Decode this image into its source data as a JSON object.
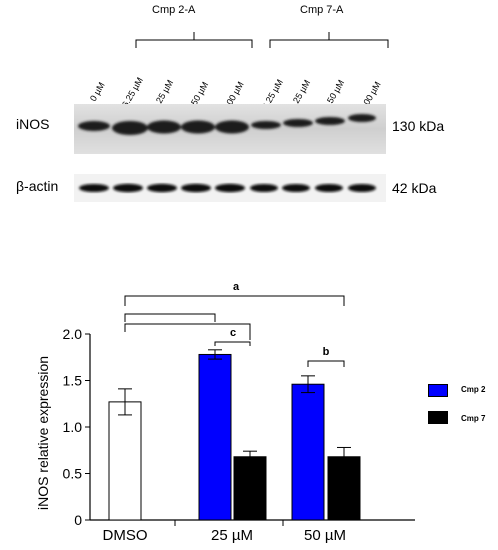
{
  "blot": {
    "groups": [
      {
        "label": "Cmp 2-A"
      },
      {
        "label": "Cmp 7-A"
      }
    ],
    "lanes": [
      "0 µM",
      "6.25 µM",
      "25 µM",
      "50 µM",
      "100 µM",
      "6.25 µM",
      "25 µM",
      "50 µM",
      "100 µM"
    ],
    "rows": [
      {
        "label": "iNOS",
        "size": "130 kDa"
      },
      {
        "label": "β-actin",
        "size": "42 kDa"
      }
    ]
  },
  "chart_data": {
    "type": "bar",
    "ylabel": "iNOS relative expression",
    "xlabel": "",
    "ylim": [
      0,
      2.0
    ],
    "yticks": [
      "0",
      "0.5",
      "1.0",
      "1.5",
      "2.0"
    ],
    "categories": [
      "DMSO",
      "25 µM",
      "50 µM"
    ],
    "series": [
      {
        "name": "DMSO",
        "values": [
          1.27,
          null,
          null
        ],
        "errors": [
          0.14,
          null,
          null
        ],
        "color": "#ffffff"
      },
      {
        "name": "Cmp 2",
        "values": [
          null,
          1.78,
          1.46
        ],
        "errors": [
          null,
          0.05,
          0.09
        ],
        "color": "#0000ff"
      },
      {
        "name": "Cmp 7",
        "values": [
          null,
          0.68,
          0.68
        ],
        "errors": [
          null,
          0.06,
          0.1
        ],
        "color": "#000000"
      }
    ],
    "significance": [
      "a",
      "c",
      "b"
    ],
    "legend": {
      "position": "right",
      "entries": [
        "Cmp 2",
        "Cmp 7"
      ]
    }
  }
}
